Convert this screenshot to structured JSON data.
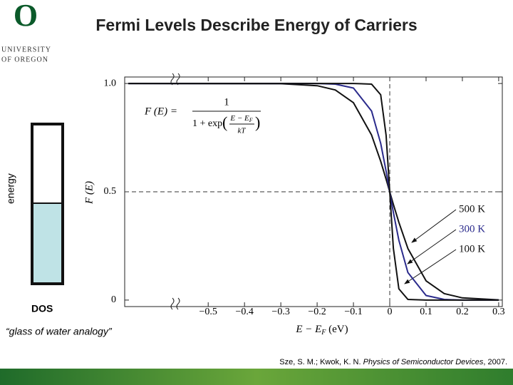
{
  "header": {
    "title": "Fermi Levels Describe Energy of Carriers",
    "logo_letter": "O",
    "logo_lines": [
      "UNIVERSITY",
      "OF OREGON"
    ]
  },
  "sidebar": {
    "energy_label": "energy",
    "dos_label": "DOS",
    "caption": "“glass of water analogy”"
  },
  "citation": {
    "authors": "Sze, S. M.; Kwok, K. N. ",
    "book": "Physics of Semiconductor Devices",
    "year": ", 2007."
  },
  "chart_data": {
    "type": "line",
    "formula": {
      "lhs": "F (E) =",
      "numerator": "1",
      "denominator": "1 + exp",
      "exp_numerator": "E − E",
      "exp_subscript": "F",
      "exp_denominator": "kT"
    },
    "ylabel": "F (E)",
    "xlabel": {
      "main": "E − E",
      "subscript": "F",
      "unit": " (eV)"
    },
    "x": [
      -0.72,
      -0.3,
      -0.2,
      -0.15,
      -0.1,
      -0.05,
      -0.025,
      -0.01,
      0,
      0.01,
      0.025,
      0.05,
      0.1,
      0.15,
      0.2,
      0.3
    ],
    "series": [
      {
        "name": "500 K",
        "color": "#111111",
        "values": [
          1.0,
          0.999,
          0.99,
          0.97,
          0.911,
          0.762,
          0.641,
          0.558,
          0.5,
          0.442,
          0.359,
          0.238,
          0.089,
          0.03,
          0.01,
          0.001
        ]
      },
      {
        "name": "300 K",
        "color": "#2b2b8c",
        "values": [
          1.0,
          1.0,
          1.0,
          0.997,
          0.979,
          0.873,
          0.724,
          0.595,
          0.5,
          0.405,
          0.276,
          0.127,
          0.021,
          0.003,
          0.0,
          0.0
        ]
      },
      {
        "name": "100 K",
        "color": "#111111",
        "values": [
          1.0,
          1.0,
          1.0,
          1.0,
          1.0,
          0.997,
          0.948,
          0.761,
          0.5,
          0.239,
          0.052,
          0.003,
          0.0,
          0.0,
          0.0,
          0.0
        ]
      }
    ],
    "xlim": [
      -0.73,
      0.31
    ],
    "ylim": [
      -0.03,
      1.03
    ],
    "xticks": [
      {
        "value": -0.5,
        "label": "−0.5"
      },
      {
        "value": -0.4,
        "label": "−0.4"
      },
      {
        "value": -0.3,
        "label": "−0.3"
      },
      {
        "value": -0.2,
        "label": "−0.2"
      },
      {
        "value": -0.1,
        "label": "−0.1"
      },
      0,
      0.1,
      0.2,
      0.3
    ],
    "yticks": [
      0,
      0.5,
      {
        "value": 1,
        "label": "1.0"
      }
    ],
    "hline": 0.5,
    "vline": 0,
    "grid": false
  }
}
